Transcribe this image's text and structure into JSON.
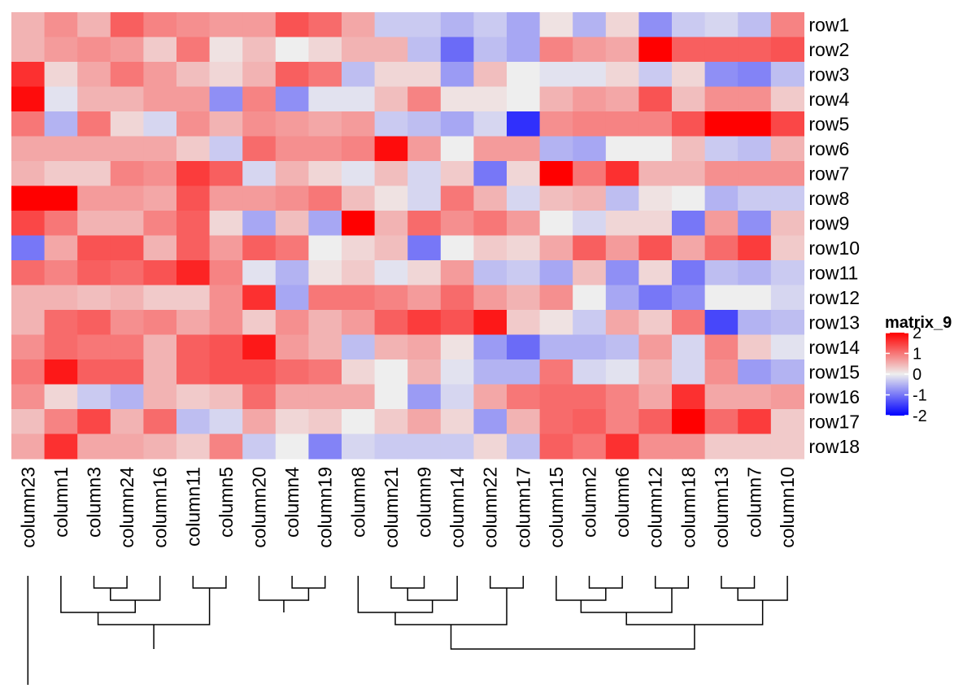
{
  "chart_data": {
    "type": "heatmap",
    "legend": {
      "title": "matrix_9",
      "ticks": [
        {
          "value": 2,
          "label": "2"
        },
        {
          "value": 1,
          "label": "1"
        },
        {
          "value": 0,
          "label": "0"
        },
        {
          "value": -1,
          "label": "-1"
        },
        {
          "value": -2,
          "label": "-2"
        }
      ],
      "range": [
        -2,
        2
      ],
      "colors": {
        "low": "#0000FF",
        "mid": "#EEEEEE",
        "high": "#FF0000"
      }
    },
    "columns": [
      "column23",
      "column1",
      "column3",
      "column24",
      "column16",
      "column11",
      "column5",
      "column20",
      "column4",
      "column19",
      "column8",
      "column21",
      "column9",
      "column14",
      "column22",
      "column17",
      "column15",
      "column2",
      "column6",
      "column12",
      "column18",
      "column13",
      "column7",
      "column10"
    ],
    "rows": [
      "row1",
      "row2",
      "row3",
      "row4",
      "row5",
      "row6",
      "row7",
      "row8",
      "row9",
      "row10",
      "row11",
      "row12",
      "row13",
      "row14",
      "row15",
      "row16",
      "row17",
      "row18"
    ],
    "values": [
      [
        0.5,
        0.8,
        0.5,
        1.2,
        0.9,
        0.8,
        0.7,
        0.7,
        1.3,
        1.1,
        0.6,
        -0.3,
        -0.3,
        -0.5,
        -0.3,
        -0.6,
        0.1,
        -0.5,
        0.2,
        -0.8,
        -0.3,
        -0.2,
        -0.4,
        0.9
      ],
      [
        0.5,
        0.7,
        0.8,
        0.7,
        0.3,
        1.0,
        0.1,
        0.4,
        0.0,
        0.2,
        0.5,
        0.5,
        -0.4,
        -1.1,
        -0.4,
        -0.6,
        0.9,
        0.7,
        0.6,
        2.0,
        1.2,
        1.2,
        1.2,
        1.3
      ],
      [
        1.6,
        0.2,
        0.6,
        1.0,
        0.7,
        0.4,
        0.2,
        0.5,
        1.2,
        1.0,
        -0.4,
        0.2,
        0.2,
        -0.7,
        0.4,
        0.0,
        -0.1,
        -0.1,
        0.2,
        -0.3,
        0.2,
        -0.8,
        -0.9,
        -0.4
      ],
      [
        1.9,
        -0.1,
        0.5,
        0.5,
        0.7,
        0.7,
        -0.8,
        0.9,
        -0.8,
        -0.1,
        -0.1,
        0.4,
        0.9,
        0.1,
        0.1,
        0.0,
        0.5,
        0.7,
        0.6,
        1.3,
        0.4,
        0.8,
        0.8,
        0.3
      ],
      [
        1.0,
        -0.5,
        1.0,
        0.2,
        -0.2,
        0.8,
        0.5,
        0.8,
        0.7,
        0.6,
        0.7,
        -0.3,
        -0.4,
        -0.6,
        -0.2,
        -1.6,
        0.8,
        0.9,
        0.9,
        0.9,
        1.3,
        2.0,
        2.0,
        1.4
      ],
      [
        0.6,
        0.6,
        0.6,
        0.6,
        0.6,
        0.3,
        -0.3,
        1.1,
        0.8,
        0.8,
        0.9,
        1.9,
        0.7,
        0.0,
        0.7,
        0.7,
        -0.5,
        -0.6,
        0.0,
        0.0,
        0.4,
        -0.3,
        -0.4,
        0.5
      ],
      [
        0.5,
        0.3,
        0.3,
        0.9,
        0.8,
        1.5,
        1.2,
        -0.2,
        0.5,
        0.2,
        -0.1,
        0.4,
        -0.2,
        0.3,
        -1.0,
        0.2,
        2.0,
        1.0,
        1.6,
        0.5,
        0.5,
        0.8,
        0.8,
        0.8
      ],
      [
        2.0,
        2.0,
        0.7,
        0.7,
        0.6,
        1.3,
        0.7,
        0.7,
        0.8,
        1.0,
        0.4,
        0.1,
        -0.2,
        1.0,
        0.5,
        -0.2,
        0.4,
        0.5,
        -0.4,
        0.1,
        0.0,
        -0.5,
        -0.3,
        -0.3
      ],
      [
        1.4,
        1.0,
        0.5,
        0.5,
        0.9,
        1.2,
        0.2,
        -0.6,
        0.4,
        -0.6,
        2.0,
        0.5,
        1.1,
        0.8,
        1.0,
        0.7,
        0.0,
        -0.2,
        0.2,
        0.2,
        -1.0,
        0.7,
        -0.8,
        0.4
      ],
      [
        -1.0,
        0.6,
        1.3,
        1.3,
        0.5,
        1.2,
        0.7,
        1.2,
        1.0,
        0.0,
        0.2,
        0.4,
        -1.0,
        0.0,
        0.3,
        0.2,
        0.6,
        1.2,
        0.7,
        1.3,
        0.6,
        1.1,
        1.5,
        0.3
      ],
      [
        1.1,
        0.9,
        1.2,
        1.1,
        1.3,
        1.7,
        0.9,
        -0.1,
        -0.5,
        0.1,
        0.3,
        -0.1,
        0.2,
        0.7,
        -0.4,
        -0.3,
        -0.6,
        0.4,
        -0.8,
        0.2,
        -1.0,
        -0.4,
        -0.5,
        -0.3
      ],
      [
        0.5,
        0.5,
        0.4,
        0.5,
        0.3,
        0.3,
        0.8,
        1.6,
        -0.6,
        1.0,
        1.0,
        0.9,
        0.7,
        1.1,
        0.7,
        0.5,
        0.8,
        0.0,
        -0.6,
        -1.0,
        -0.8,
        0.0,
        0.0,
        -0.2
      ],
      [
        0.5,
        1.1,
        1.2,
        0.8,
        0.9,
        0.6,
        0.8,
        0.3,
        0.8,
        0.5,
        0.7,
        1.2,
        1.5,
        1.3,
        1.8,
        0.3,
        0.1,
        -0.3,
        0.6,
        0.3,
        1.0,
        -1.4,
        -0.5,
        -0.4
      ],
      [
        0.8,
        1.1,
        1.0,
        1.0,
        0.5,
        1.2,
        1.3,
        1.8,
        0.7,
        0.5,
        -0.4,
        0.5,
        0.6,
        0.1,
        -0.7,
        -1.1,
        -0.5,
        -0.5,
        -0.4,
        0.7,
        -0.2,
        0.9,
        0.3,
        -0.1
      ],
      [
        1.0,
        1.8,
        1.2,
        1.2,
        0.5,
        1.2,
        1.3,
        1.3,
        1.1,
        1.0,
        0.2,
        0.0,
        0.5,
        -0.1,
        -0.5,
        -0.5,
        1.0,
        -0.2,
        -0.1,
        0.5,
        -0.2,
        0.8,
        -0.7,
        -0.5
      ],
      [
        0.8,
        0.2,
        -0.3,
        -0.5,
        0.5,
        0.3,
        0.4,
        1.1,
        0.6,
        0.6,
        0.6,
        0.0,
        -0.7,
        -0.2,
        0.6,
        1.0,
        1.1,
        1.1,
        0.9,
        0.6,
        1.6,
        0.6,
        0.6,
        0.7
      ],
      [
        0.4,
        0.9,
        1.4,
        0.5,
        1.1,
        -0.4,
        -0.2,
        0.6,
        0.2,
        0.3,
        0.0,
        0.3,
        0.6,
        0.2,
        -0.7,
        0.5,
        1.1,
        1.2,
        0.9,
        1.2,
        2.0,
        1.1,
        1.5,
        0.3
      ],
      [
        0.6,
        1.6,
        0.6,
        0.6,
        0.5,
        0.3,
        0.9,
        -0.3,
        0.0,
        -0.9,
        -0.2,
        -0.3,
        -0.3,
        -0.3,
        0.2,
        -0.4,
        1.2,
        1.0,
        1.6,
        0.8,
        0.8,
        0.3,
        0.3,
        0.3
      ]
    ]
  }
}
